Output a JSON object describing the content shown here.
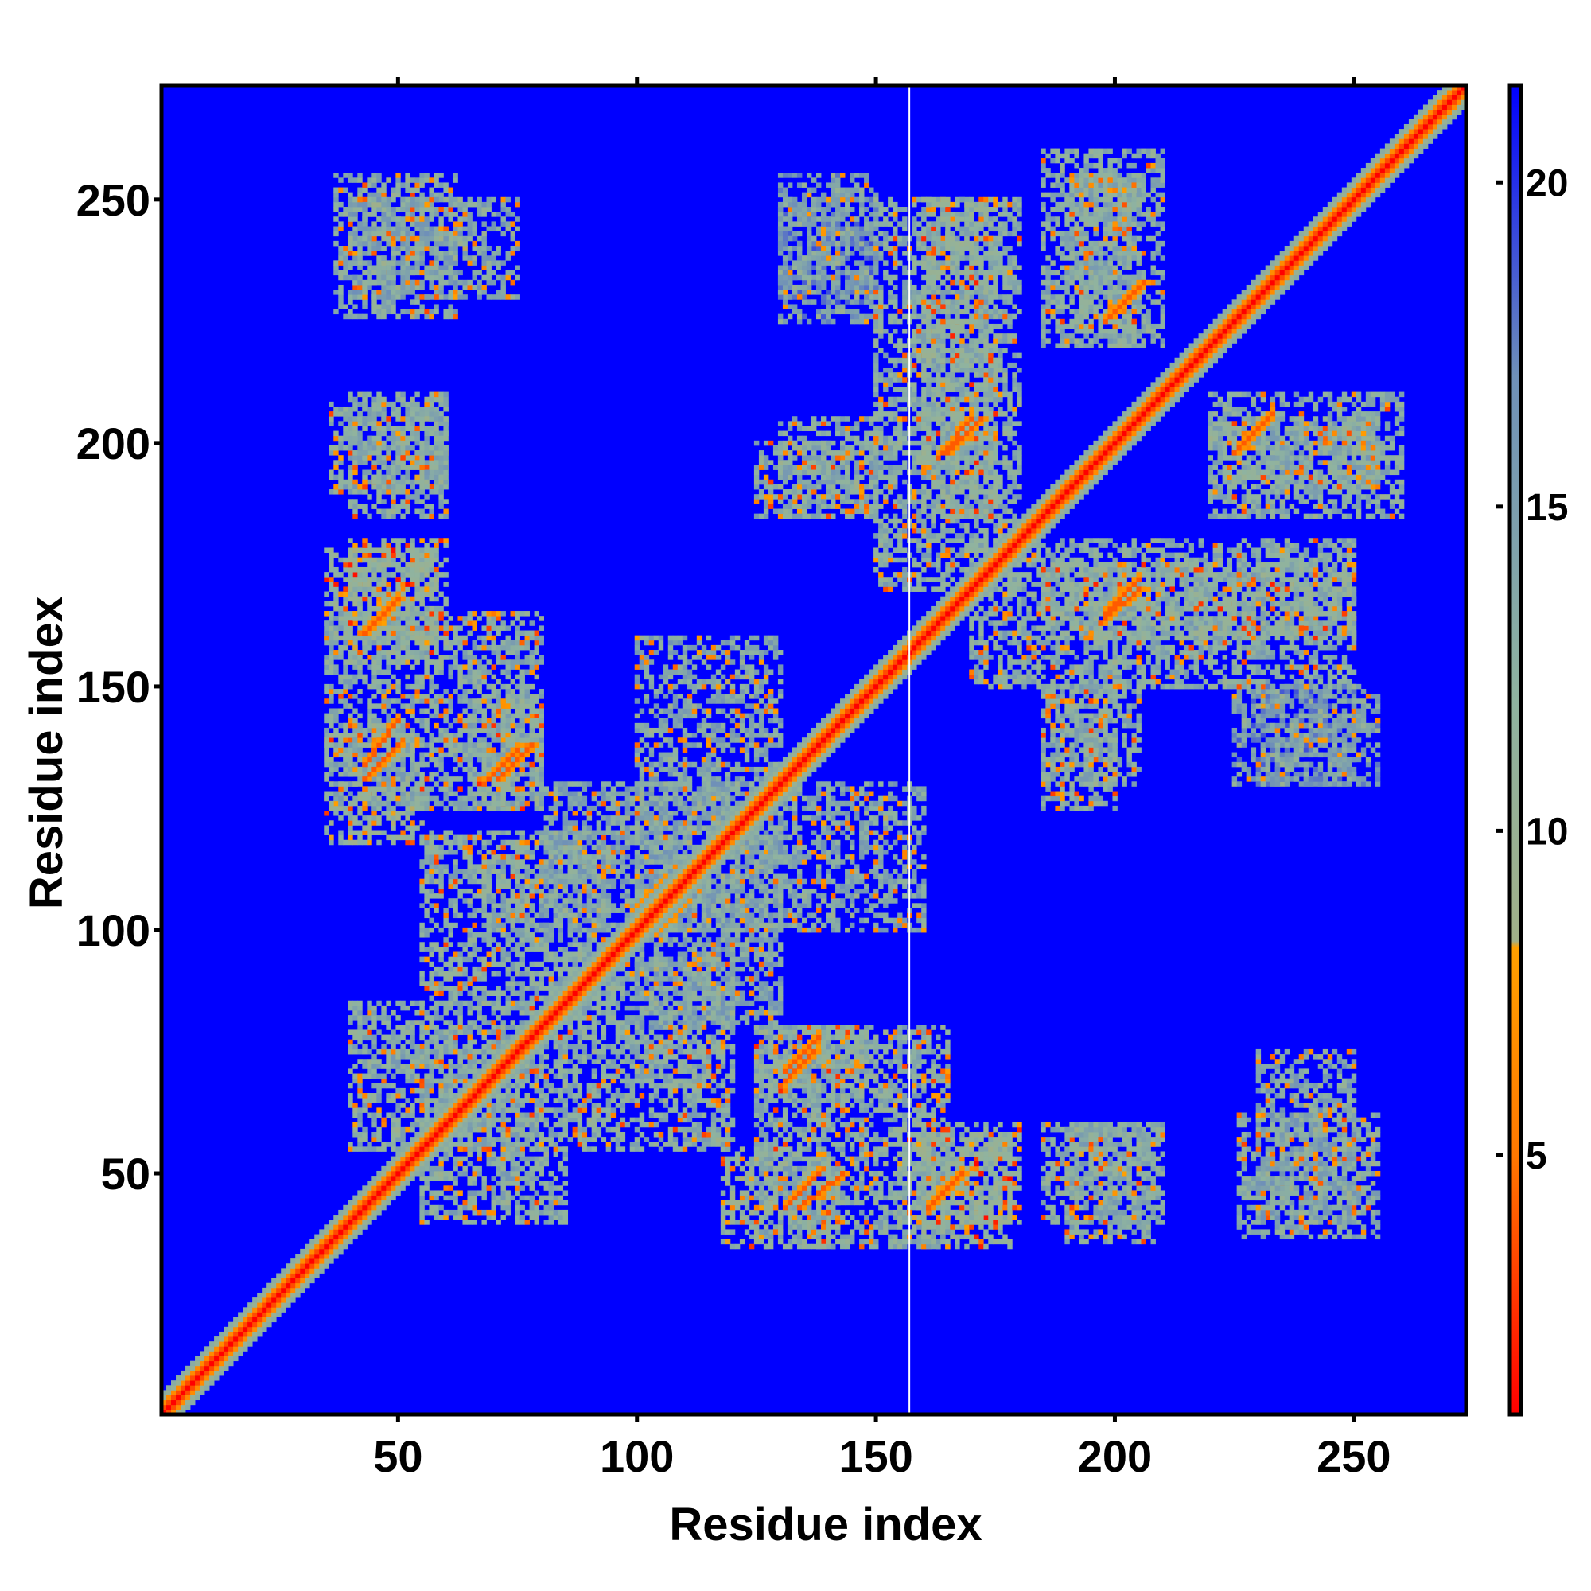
{
  "chart_data": {
    "type": "heatmap",
    "title": "",
    "xlabel": "Residue index",
    "ylabel": "Residue index",
    "xlim": [
      1,
      273
    ],
    "ylim": [
      1,
      273
    ],
    "x_ticks": [
      50,
      100,
      150,
      200,
      250
    ],
    "y_ticks": [
      50,
      100,
      150,
      200,
      250
    ],
    "colorbar": {
      "ticks": [
        5,
        10,
        15,
        20
      ],
      "range": [
        1,
        21.5
      ],
      "stops": [
        {
          "value": 1.0,
          "color": "#ff0000"
        },
        {
          "value": 5.0,
          "color": "#ff7800"
        },
        {
          "value": 8.2,
          "color": "#ffa000"
        },
        {
          "value": 8.3,
          "color": "#a0b08a"
        },
        {
          "value": 12.0,
          "color": "#8fb3a0"
        },
        {
          "value": 17.0,
          "color": "#6f90b8"
        },
        {
          "value": 21.5,
          "color": "#0000ff"
        }
      ]
    },
    "background_value": 21.5,
    "diagonal_band_width": 4,
    "gap_column_x": 157,
    "contact_blocks": [
      {
        "x": [
          37,
          62
        ],
        "y": [
          226,
          255
        ],
        "value": 13
      },
      {
        "x": [
          36,
          60
        ],
        "y": [
          190,
          208
        ],
        "value": 13
      },
      {
        "x": [
          35,
          58
        ],
        "y": [
          160,
          178
        ],
        "value": 11
      },
      {
        "x": [
          35,
          55
        ],
        "y": [
          118,
          142
        ],
        "value": 11
      },
      {
        "x": [
          65,
          80
        ],
        "y": [
          125,
          150
        ],
        "value": 12
      },
      {
        "x": [
          68,
          78
        ],
        "y": [
          100,
          115
        ],
        "value": 13
      },
      {
        "x": [
          55,
          85
        ],
        "y": [
          40,
          80
        ],
        "value": 13
      },
      {
        "x": [
          85,
          120
        ],
        "y": [
          55,
          95
        ],
        "value": 13
      },
      {
        "x": [
          100,
          130
        ],
        "y": [
          80,
          160
        ],
        "value": 14
      },
      {
        "x": [
          125,
          150
        ],
        "y": [
          185,
          200
        ],
        "value": 13
      },
      {
        "x": [
          130,
          150
        ],
        "y": [
          225,
          250
        ],
        "value": 16
      },
      {
        "x": [
          150,
          180
        ],
        "y": [
          170,
          250
        ],
        "value": 13
      },
      {
        "x": [
          125,
          165
        ],
        "y": [
          35,
          80
        ],
        "value": 13
      },
      {
        "x": [
          155,
          180
        ],
        "y": [
          40,
          60
        ],
        "value": 11
      },
      {
        "x": [
          185,
          210
        ],
        "y": [
          40,
          60
        ],
        "value": 13
      },
      {
        "x": [
          230,
          250
        ],
        "y": [
          40,
          75
        ],
        "value": 14
      },
      {
        "x": [
          185,
          205
        ],
        "y": [
          130,
          150
        ],
        "value": 13
      },
      {
        "x": [
          230,
          255
        ],
        "y": [
          130,
          150
        ],
        "value": 15
      },
      {
        "x": [
          185,
          250
        ],
        "y": [
          160,
          175
        ],
        "value": 12
      },
      {
        "x": [
          185,
          210
        ],
        "y": [
          220,
          260
        ],
        "value": 13
      },
      {
        "x": [
          220,
          255
        ],
        "y": [
          190,
          205
        ],
        "value": 13
      }
    ],
    "contact_strands": [
      {
        "from": [
          43,
          161
        ],
        "to": [
          50,
          168
        ],
        "value": 4
      },
      {
        "from": [
          43,
          131
        ],
        "to": [
          50,
          138
        ],
        "value": 4
      },
      {
        "from": [
          71,
          131
        ],
        "to": [
          78,
          138
        ],
        "value": 4
      },
      {
        "from": [
          134,
          43
        ],
        "to": [
          143,
          50
        ],
        "value": 4
      },
      {
        "from": [
          161,
          43
        ],
        "to": [
          168,
          50
        ],
        "value": 4
      },
      {
        "from": [
          130,
          68
        ],
        "to": [
          137,
          75
        ],
        "value": 4
      },
      {
        "from": [
          165,
          198
        ],
        "to": [
          172,
          205
        ],
        "value": 4
      },
      {
        "from": [
          197,
          163
        ],
        "to": [
          205,
          170
        ],
        "value": 4
      },
      {
        "from": [
          199,
          226
        ],
        "to": [
          206,
          233
        ],
        "value": 4
      },
      {
        "from": [
          225,
          198
        ],
        "to": [
          232,
          205
        ],
        "value": 4
      },
      {
        "from": [
          104,
          100
        ],
        "to": [
          110,
          106
        ],
        "value": 4
      }
    ]
  }
}
